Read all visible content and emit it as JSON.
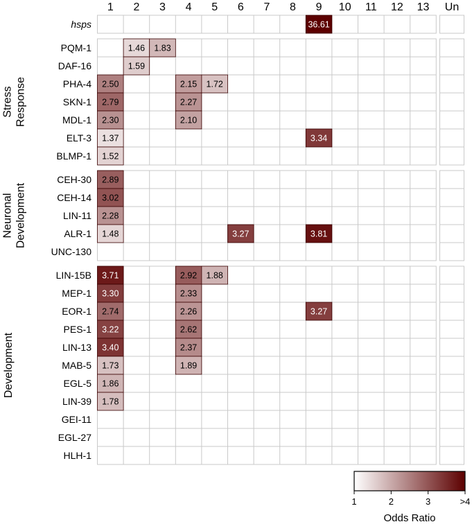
{
  "chart_data": {
    "type": "heatmap",
    "columns": [
      "1",
      "2",
      "3",
      "4",
      "5",
      "6",
      "7",
      "8",
      "9",
      "10",
      "11",
      "12",
      "13",
      "Un"
    ],
    "panels": [
      {
        "group_label": [],
        "rows": [
          {
            "label": "hsps",
            "italic": true,
            "values": [
              null,
              null,
              null,
              null,
              null,
              null,
              null,
              null,
              36.61,
              null,
              null,
              null,
              null,
              null
            ]
          }
        ]
      },
      {
        "group_label": [
          "Stress",
          "Response"
        ],
        "rows": [
          {
            "label": "PQM-1",
            "values": [
              null,
              1.46,
              1.83,
              null,
              null,
              null,
              null,
              null,
              null,
              null,
              null,
              null,
              null,
              null
            ]
          },
          {
            "label": "DAF-16",
            "values": [
              null,
              1.59,
              null,
              null,
              null,
              null,
              null,
              null,
              null,
              null,
              null,
              null,
              null,
              null
            ]
          },
          {
            "label": "PHA-4",
            "values": [
              2.5,
              null,
              null,
              2.15,
              1.72,
              null,
              null,
              null,
              null,
              null,
              null,
              null,
              null,
              null
            ]
          },
          {
            "label": "SKN-1",
            "values": [
              2.79,
              null,
              null,
              2.27,
              null,
              null,
              null,
              null,
              null,
              null,
              null,
              null,
              null,
              null
            ]
          },
          {
            "label": "MDL-1",
            "values": [
              2.3,
              null,
              null,
              2.1,
              null,
              null,
              null,
              null,
              null,
              null,
              null,
              null,
              null,
              null
            ]
          },
          {
            "label": "ELT-3",
            "values": [
              1.37,
              null,
              null,
              null,
              null,
              null,
              null,
              null,
              3.34,
              null,
              null,
              null,
              null,
              null
            ]
          },
          {
            "label": "BLMP-1",
            "values": [
              1.52,
              null,
              null,
              null,
              null,
              null,
              null,
              null,
              null,
              null,
              null,
              null,
              null,
              null
            ]
          }
        ]
      },
      {
        "group_label": [
          "Neuronal",
          "Development"
        ],
        "rows": [
          {
            "label": "CEH-30",
            "values": [
              2.89,
              null,
              null,
              null,
              null,
              null,
              null,
              null,
              null,
              null,
              null,
              null,
              null,
              null
            ]
          },
          {
            "label": "CEH-14",
            "values": [
              3.02,
              null,
              null,
              null,
              null,
              null,
              null,
              null,
              null,
              null,
              null,
              null,
              null,
              null
            ]
          },
          {
            "label": "LIN-11",
            "values": [
              2.28,
              null,
              null,
              null,
              null,
              null,
              null,
              null,
              null,
              null,
              null,
              null,
              null,
              null
            ]
          },
          {
            "label": "ALR-1",
            "values": [
              1.48,
              null,
              null,
              null,
              null,
              3.27,
              null,
              null,
              3.81,
              null,
              null,
              null,
              null,
              null
            ]
          },
          {
            "label": "UNC-130",
            "values": [
              null,
              null,
              null,
              null,
              null,
              null,
              null,
              null,
              null,
              null,
              null,
              null,
              null,
              null
            ]
          }
        ]
      },
      {
        "group_label": [
          "Development"
        ],
        "rows": [
          {
            "label": "LIN-15B",
            "values": [
              3.71,
              null,
              null,
              2.92,
              1.88,
              null,
              null,
              null,
              null,
              null,
              null,
              null,
              null,
              null
            ]
          },
          {
            "label": "MEP-1",
            "values": [
              3.3,
              null,
              null,
              2.33,
              null,
              null,
              null,
              null,
              null,
              null,
              null,
              null,
              null,
              null
            ]
          },
          {
            "label": "EOR-1",
            "values": [
              2.74,
              null,
              null,
              2.26,
              null,
              null,
              null,
              null,
              3.27,
              null,
              null,
              null,
              null,
              null
            ]
          },
          {
            "label": "PES-1",
            "values": [
              3.22,
              null,
              null,
              2.62,
              null,
              null,
              null,
              null,
              null,
              null,
              null,
              null,
              null,
              null
            ]
          },
          {
            "label": "LIN-13",
            "values": [
              3.4,
              null,
              null,
              2.37,
              null,
              null,
              null,
              null,
              null,
              null,
              null,
              null,
              null,
              null
            ]
          },
          {
            "label": "MAB-5",
            "values": [
              1.73,
              null,
              null,
              1.89,
              null,
              null,
              null,
              null,
              null,
              null,
              null,
              null,
              null,
              null
            ]
          },
          {
            "label": "EGL-5",
            "values": [
              1.86,
              null,
              null,
              null,
              null,
              null,
              null,
              null,
              null,
              null,
              null,
              null,
              null,
              null
            ]
          },
          {
            "label": "LIN-39",
            "values": [
              1.78,
              null,
              null,
              null,
              null,
              null,
              null,
              null,
              null,
              null,
              null,
              null,
              null,
              null
            ]
          },
          {
            "label": "GEI-11",
            "values": [
              null,
              null,
              null,
              null,
              null,
              null,
              null,
              null,
              null,
              null,
              null,
              null,
              null,
              null
            ]
          },
          {
            "label": "EGL-27",
            "values": [
              null,
              null,
              null,
              null,
              null,
              null,
              null,
              null,
              null,
              null,
              null,
              null,
              null,
              null
            ]
          },
          {
            "label": "HLH-1",
            "values": [
              null,
              null,
              null,
              null,
              null,
              null,
              null,
              null,
              null,
              null,
              null,
              null,
              null,
              null
            ]
          }
        ]
      }
    ],
    "colorbar": {
      "title": "Odds Ratio",
      "ticks": [
        "1",
        "2",
        "3",
        ">4"
      ],
      "range": [
        1,
        4
      ],
      "colors": [
        "#ffffff",
        "#5c0000"
      ]
    }
  }
}
